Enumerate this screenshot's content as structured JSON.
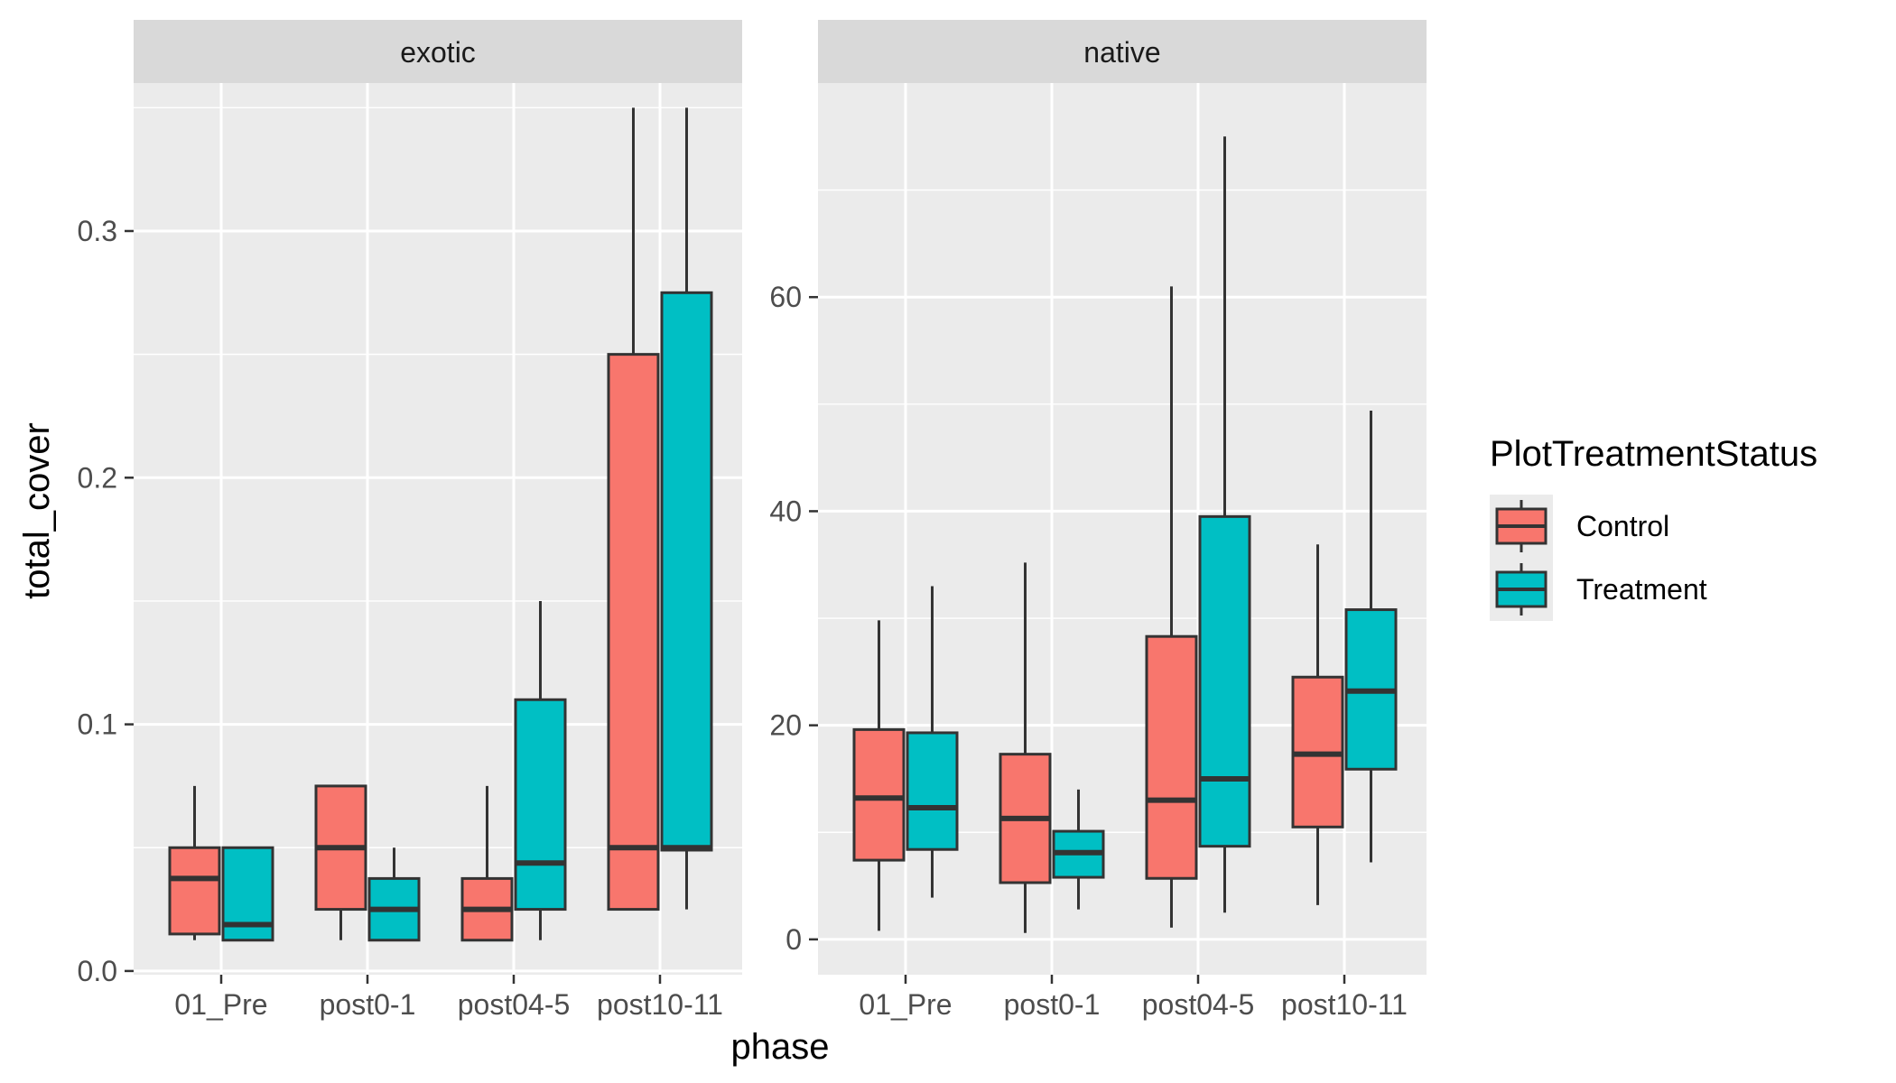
{
  "chart_data": {
    "type": "boxplot",
    "xlabel": "phase",
    "ylabel": "total_cover",
    "facets": [
      {
        "label": "exotic",
        "ylim": [
          -0.0015,
          0.36
        ],
        "yticks": [
          0.0,
          0.1,
          0.2,
          0.3
        ],
        "ytick_labels": [
          "0.0",
          "0.1",
          "0.2",
          "0.3"
        ],
        "categories": [
          "01_Pre",
          "post0-1",
          "post04-5",
          "post10-11"
        ],
        "series": [
          {
            "name": "Control",
            "boxes": [
              {
                "category": "01_Pre",
                "min": 0.0125,
                "q1": 0.015,
                "median": 0.0375,
                "q3": 0.05,
                "max": 0.075
              },
              {
                "category": "post0-1",
                "min": 0.0125,
                "q1": 0.025,
                "median": 0.05,
                "q3": 0.075,
                "max": 0.075
              },
              {
                "category": "post04-5",
                "min": 0.0125,
                "q1": 0.0125,
                "median": 0.025,
                "q3": 0.0375,
                "max": 0.075
              },
              {
                "category": "post10-11",
                "min": 0.025,
                "q1": 0.025,
                "median": 0.05,
                "q3": 0.25,
                "max": 0.35
              }
            ]
          },
          {
            "name": "Treatment",
            "boxes": [
              {
                "category": "01_Pre",
                "min": 0.0125,
                "q1": 0.0125,
                "median": 0.0188,
                "q3": 0.05,
                "max": 0.05
              },
              {
                "category": "post0-1",
                "min": 0.0125,
                "q1": 0.0125,
                "median": 0.025,
                "q3": 0.0375,
                "max": 0.05
              },
              {
                "category": "post04-5",
                "min": 0.0125,
                "q1": 0.025,
                "median": 0.0438,
                "q3": 0.11,
                "max": 0.15
              },
              {
                "category": "post10-11",
                "min": 0.025,
                "q1": 0.049,
                "median": 0.05,
                "q3": 0.275,
                "max": 0.35
              }
            ]
          }
        ]
      },
      {
        "label": "native",
        "ylim": [
          -3.3,
          80
        ],
        "yticks": [
          0,
          20,
          40,
          60
        ],
        "ytick_labels": [
          "0",
          "20",
          "40",
          "60"
        ],
        "categories": [
          "01_Pre",
          "post0-1",
          "post04-5",
          "post10-11"
        ],
        "series": [
          {
            "name": "Control",
            "boxes": [
              {
                "category": "01_Pre",
                "min": 0.8,
                "q1": 7.4,
                "median": 13.2,
                "q3": 19.6,
                "max": 29.8
              },
              {
                "category": "post0-1",
                "min": 0.6,
                "q1": 5.3,
                "median": 11.3,
                "q3": 17.3,
                "max": 35.2
              },
              {
                "category": "post04-5",
                "min": 1.1,
                "q1": 5.7,
                "median": 13.0,
                "q3": 28.3,
                "max": 61.0
              },
              {
                "category": "post10-11",
                "min": 3.2,
                "q1": 10.5,
                "median": 17.3,
                "q3": 24.5,
                "max": 36.9
              }
            ]
          },
          {
            "name": "Treatment",
            "boxes": [
              {
                "category": "01_Pre",
                "min": 3.9,
                "q1": 8.4,
                "median": 12.3,
                "q3": 19.3,
                "max": 33.0
              },
              {
                "category": "post0-1",
                "min": 2.8,
                "q1": 5.8,
                "median": 8.1,
                "q3": 10.1,
                "max": 14.0
              },
              {
                "category": "post04-5",
                "min": 2.5,
                "q1": 8.7,
                "median": 15.0,
                "q3": 39.5,
                "max": 75.0
              },
              {
                "category": "post10-11",
                "min": 7.2,
                "q1": 15.9,
                "median": 23.2,
                "q3": 30.8,
                "max": 49.4
              }
            ]
          }
        ]
      }
    ],
    "legend": {
      "title": "PlotTreatmentStatus",
      "position": "right",
      "entries": [
        {
          "name": "Control",
          "color": "#F8766D"
        },
        {
          "name": "Treatment",
          "color": "#00BFC4"
        }
      ]
    },
    "colors": {
      "panel_background": "#EBEBEB",
      "strip_background": "#D9D9D9",
      "grid": "#FFFFFF",
      "box_outline": "#333333",
      "text": "#4D4D4D",
      "title_text": "#000000"
    },
    "grid": true
  }
}
